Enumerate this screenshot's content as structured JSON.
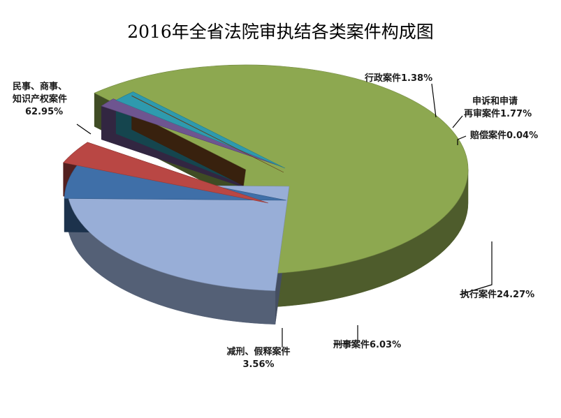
{
  "chart_data": {
    "type": "pie",
    "title": "2016年全省法院审执结各类案件构成图",
    "slices": [
      {
        "label_lines": [
          "民事、商事、",
          "知识产权案件"
        ],
        "value": 62.95,
        "value_text": "62.95%",
        "color": "#8DA850"
      },
      {
        "label_lines": [
          "执行案件"
        ],
        "value": 24.27,
        "value_text": "24.27%",
        "color": "#98AED7"
      },
      {
        "label_lines": [
          "刑事案件"
        ],
        "value": 6.03,
        "value_text": "6.03%",
        "color": "#3F6FA8"
      },
      {
        "label_lines": [
          "减刑、假释案件"
        ],
        "value": 3.56,
        "value_text": "3.56%",
        "color": "#B94744"
      },
      {
        "label_lines": [
          "行政案件"
        ],
        "value": 1.38,
        "value_text": "1.38%",
        "color": "#6E5590"
      },
      {
        "label_lines": [
          "申诉和申请",
          "再审案件"
        ],
        "value": 1.77,
        "value_text": "1.77%",
        "color": "#2E9AAE"
      },
      {
        "label_lines": [
          "赔偿案件"
        ],
        "value": 0.04,
        "value_text": "0.04%",
        "color": "#7D4A1E"
      }
    ],
    "legend": "none",
    "data_labels": "outside-with-leader-lines"
  }
}
